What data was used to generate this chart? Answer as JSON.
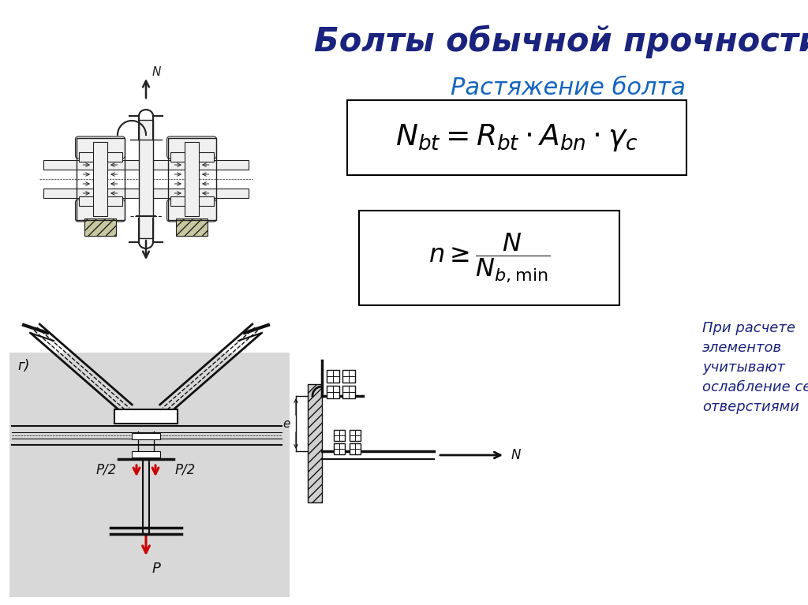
{
  "title": "Болты обычной прочности",
  "subtitle": "Растяжение болта",
  "note_text": "При расчете\nэлементов\nучитывают\nослабление сечения\nотверстиями",
  "bg_color": "#ffffff",
  "title_color": "#1a237e",
  "subtitle_color": "#1565c0"
}
